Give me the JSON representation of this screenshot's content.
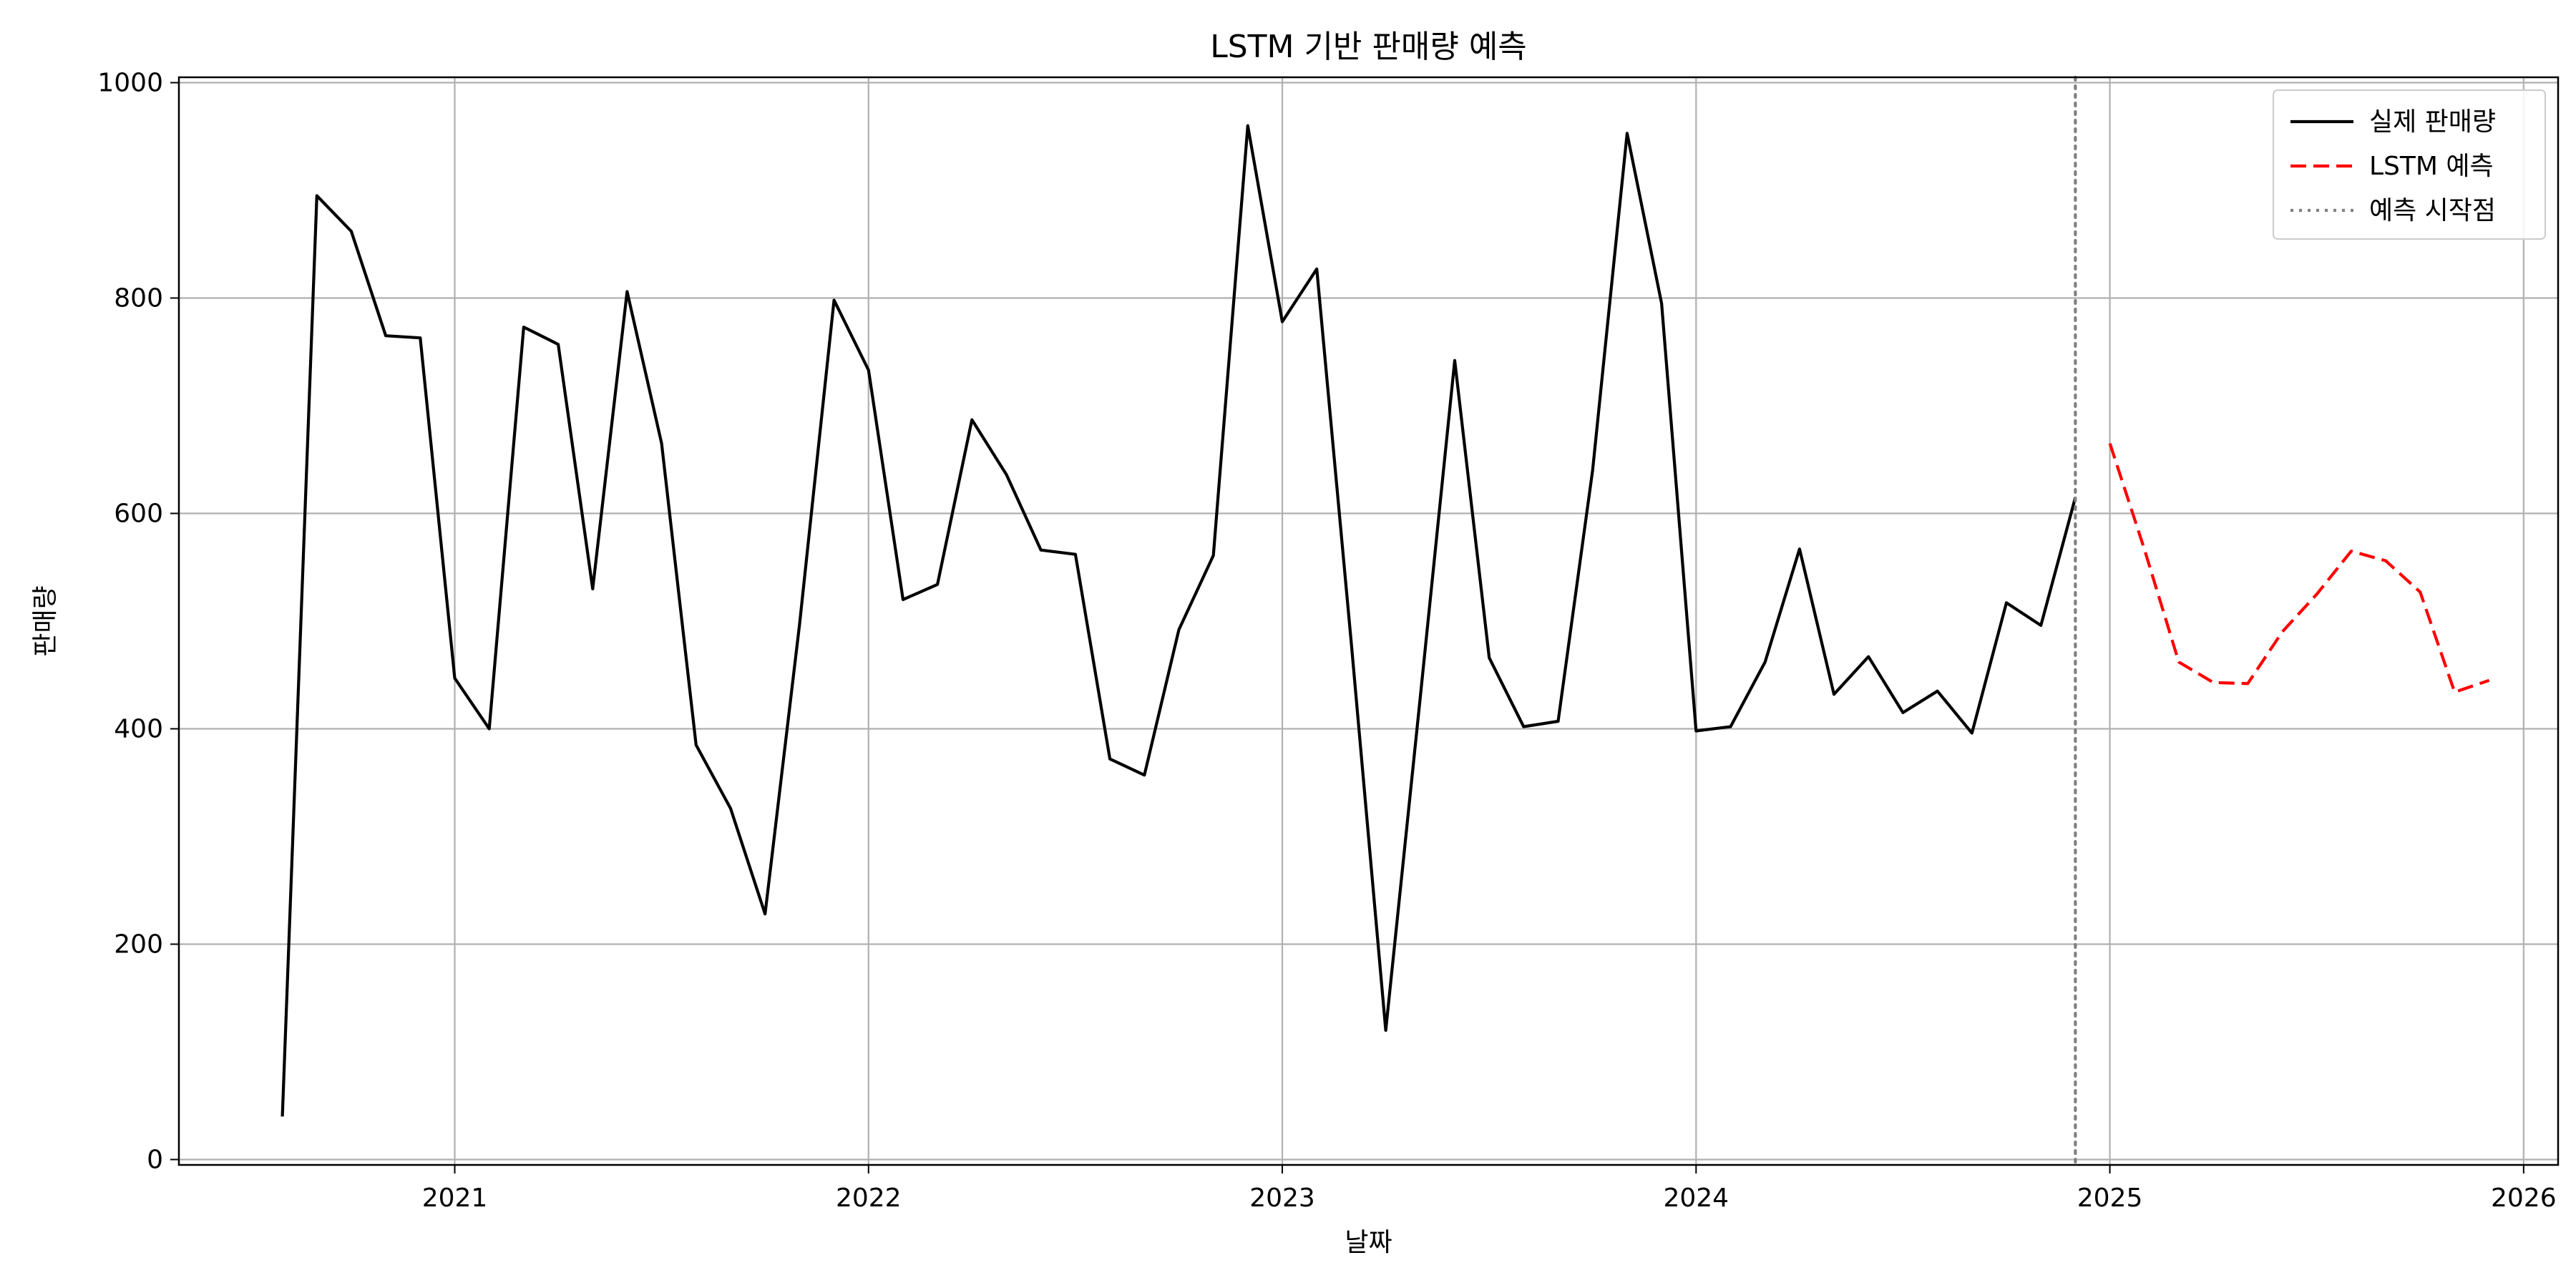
{
  "chart_data": {
    "type": "line",
    "title": "LSTM 기반 판매량 예측",
    "xlabel": "날짜",
    "ylabel": "판매량",
    "xlim": [
      "2020-05",
      "2026-02"
    ],
    "ylim": [
      -5,
      1005
    ],
    "x_ticks": [
      "2021",
      "2022",
      "2023",
      "2024",
      "2025",
      "2026"
    ],
    "y_ticks": [
      0,
      200,
      400,
      600,
      800,
      1000
    ],
    "grid": true,
    "legend_position": "top-right",
    "series": [
      {
        "name": "실제 판매량",
        "color": "#000000",
        "style": "solid",
        "x": [
          "2020-08",
          "2020-09",
          "2020-10",
          "2020-11",
          "2020-12",
          "2021-01",
          "2021-02",
          "2021-03",
          "2021-04",
          "2021-05",
          "2021-06",
          "2021-07",
          "2021-08",
          "2021-09",
          "2021-10",
          "2021-11",
          "2021-12",
          "2022-01",
          "2022-02",
          "2022-03",
          "2022-04",
          "2022-05",
          "2022-06",
          "2022-07",
          "2022-08",
          "2022-09",
          "2022-10",
          "2022-11",
          "2022-12",
          "2023-01",
          "2023-02",
          "2023-03",
          "2023-04",
          "2023-05",
          "2023-06",
          "2023-07",
          "2023-08",
          "2023-09",
          "2023-10",
          "2023-11",
          "2023-12",
          "2024-01",
          "2024-02",
          "2024-03",
          "2024-04",
          "2024-05",
          "2024-06",
          "2024-07",
          "2024-08",
          "2024-09",
          "2024-10",
          "2024-11",
          "2024-12"
        ],
        "values": [
          40,
          895,
          862,
          765,
          763,
          447,
          400,
          773,
          757,
          530,
          806,
          665,
          385,
          326,
          228,
          497,
          798,
          733,
          520,
          534,
          687,
          636,
          566,
          562,
          372,
          357,
          492,
          561,
          960,
          778,
          827,
          480,
          120,
          429,
          742,
          466,
          402,
          407,
          640,
          953,
          795,
          398,
          402,
          462,
          567,
          432,
          467,
          415,
          435,
          396,
          517,
          496,
          615
        ]
      },
      {
        "name": "LSTM 예측",
        "color": "#ff0000",
        "style": "dashed",
        "x": [
          "2025-01",
          "2025-02",
          "2025-03",
          "2025-04",
          "2025-05",
          "2025-06",
          "2025-07",
          "2025-08",
          "2025-09",
          "2025-10",
          "2025-11",
          "2025-12"
        ],
        "values": [
          665,
          567,
          462,
          443,
          442,
          490,
          525,
          565,
          556,
          527,
          434,
          445
        ]
      }
    ],
    "forecast_start": {
      "name": "예측 시작점",
      "x": "2024-12",
      "color": "#808080",
      "style": "dotted"
    }
  }
}
